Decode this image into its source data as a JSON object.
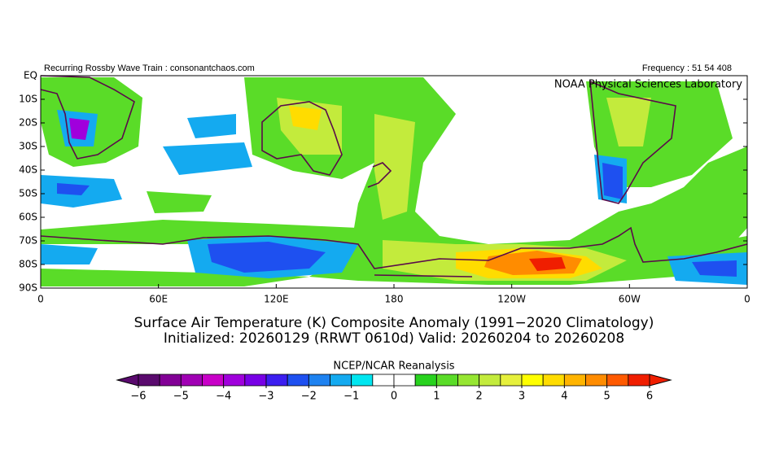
{
  "header": {
    "left": "Recurring Rossby Wave Train : consonantchaos.com",
    "right": "Frequency : 51 54 408"
  },
  "map": {
    "credit": "NOAA Physical Sciences Laboratory",
    "lat_labels": [
      "EQ",
      "10S",
      "20S",
      "30S",
      "40S",
      "50S",
      "60S",
      "70S",
      "80S",
      "90S"
    ],
    "lon_labels": [
      "0",
      "60E",
      "120E",
      "180",
      "120W",
      "60W",
      "0"
    ]
  },
  "title": [
    "Surface Air Temperature (K) Composite Anomaly (1991−2020 Climatology)",
    "Initialized: 20260129 (RRWT 0610d) Valid: 20260204 to 20260208"
  ],
  "colorbar": {
    "title": "NCEP/NCAR Reanalysis",
    "lim": [
      -6,
      6
    ],
    "colors": [
      "#5a0a6e",
      "#820096",
      "#a000b4",
      "#c800c8",
      "#a000dc",
      "#7800e6",
      "#3c1ef0",
      "#1e50f0",
      "#1e82f0",
      "#14aaf0",
      "#00e6f0",
      "#ffffff",
      "#ffffff",
      "#28d21e",
      "#5adc28",
      "#96e632",
      "#c3eb3c",
      "#e6f03c",
      "#ffff00",
      "#ffdc00",
      "#ffb400",
      "#ff8c00",
      "#ff5a00",
      "#f01e00"
    ],
    "ticks": [
      {
        "value": -6,
        "label": "−6"
      },
      {
        "value": -5,
        "label": "−5"
      },
      {
        "value": -4,
        "label": "−4"
      },
      {
        "value": -3,
        "label": "−3"
      },
      {
        "value": -2,
        "label": "−2"
      },
      {
        "value": -1,
        "label": "−1"
      },
      0,
      1,
      2,
      3,
      4,
      5,
      6
    ]
  }
}
